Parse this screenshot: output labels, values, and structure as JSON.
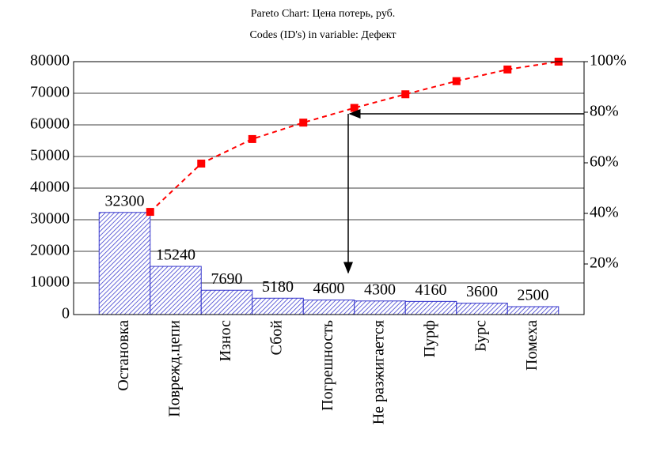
{
  "chart_data": {
    "type": "pareto",
    "title": "Pareto Chart: Цена потерь, руб.",
    "subtitle": "Codes (ID's) in variable: Дефект",
    "categories": [
      "Остановка",
      "Поврежд.цепи",
      "Износ",
      "Сбой",
      "Погрешность",
      "Не разжигается",
      "Пурф",
      "Бурс",
      "Помеха"
    ],
    "series": [
      {
        "color": "#3333cc",
        "values": [
          32300,
          15240,
          7690,
          5180,
          4600,
          4300,
          4160,
          3600,
          2500
        ]
      },
      {
        "color": "#ff0000",
        "axis": "y2",
        "values": [
          40.6,
          59.7,
          69.4,
          75.9,
          81.7,
          87.1,
          92.3,
          96.9,
          100
        ]
      }
    ],
    "ylim": [
      0,
      80000
    ],
    "yticks": [
      0,
      10000,
      20000,
      30000,
      40000,
      50000,
      60000,
      70000,
      80000
    ],
    "y2lim": [
      0,
      100
    ],
    "y2ticks": [
      {
        "value": 20,
        "label": "20%"
      },
      {
        "value": 40,
        "label": "40%"
      },
      {
        "value": 60,
        "label": "60%"
      },
      {
        "value": 80,
        "label": "80%"
      },
      {
        "value": 100,
        "label": "100%"
      }
    ],
    "grid": true
  }
}
